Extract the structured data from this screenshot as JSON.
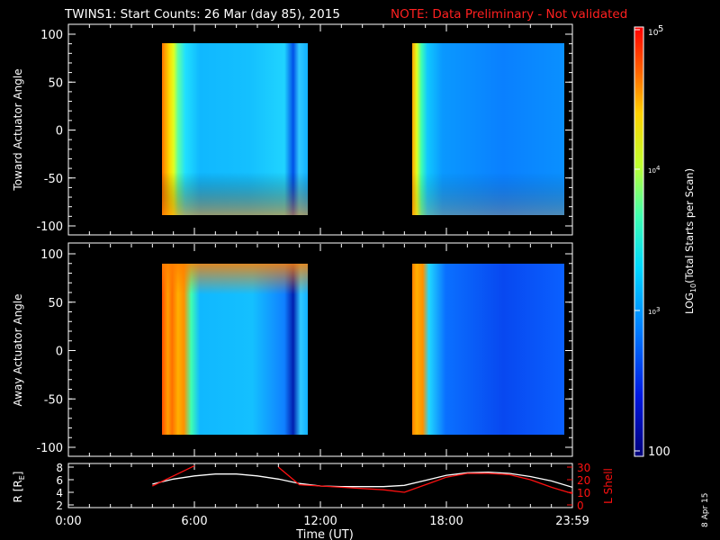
{
  "header": {
    "title": "TWINS1: Start Counts: 26 Mar (day  85), 2015",
    "note": "NOTE: Data Preliminary - Not validated"
  },
  "side_label": "8 Apr 15",
  "colors": {
    "background": "#000000",
    "axes": "#ffffff",
    "note": "#ff2020",
    "lshell": "#ff1010",
    "radius": "#ffffff"
  },
  "chart_data": [
    {
      "type": "heatmap",
      "panel": "toward",
      "ylabel": "Toward Actuator Angle",
      "ylim": [
        -100,
        100
      ],
      "yticks": [
        100,
        50,
        0,
        -50,
        -100
      ],
      "xlim_hours": [
        0,
        24
      ],
      "data_blocks": [
        {
          "start_hour": 4.0,
          "end_hour": 11.0,
          "angle_range": [
            -90,
            90
          ]
        },
        {
          "start_hour": 16.0,
          "end_hour": 23.5,
          "angle_range": [
            -90,
            90
          ]
        }
      ]
    },
    {
      "type": "heatmap",
      "panel": "away",
      "ylabel": "Away Actuator Angle",
      "ylim": [
        -100,
        100
      ],
      "yticks": [
        100,
        50,
        0,
        -50,
        -100
      ],
      "xlim_hours": [
        0,
        24
      ],
      "data_blocks": [
        {
          "start_hour": 4.0,
          "end_hour": 11.0,
          "angle_range": [
            -90,
            90
          ]
        },
        {
          "start_hour": 16.0,
          "end_hour": 23.5,
          "angle_range": [
            -90,
            90
          ]
        }
      ]
    },
    {
      "type": "line",
      "panel": "orbit",
      "x_hours": [
        4.0,
        5.0,
        6.0,
        7.0,
        8.0,
        9.0,
        10.0,
        11.0,
        12.0,
        13.0,
        14.0,
        15.0,
        16.0,
        17.0,
        18.0,
        19.0,
        20.0,
        21.0,
        22.0,
        23.0,
        24.0
      ],
      "series": [
        {
          "name": "R [RE]",
          "axis": "left",
          "ylim": [
            2,
            8
          ],
          "yticks": [
            8,
            6,
            4,
            2
          ],
          "values": [
            5.3,
            6.1,
            6.6,
            6.9,
            6.9,
            6.6,
            6.1,
            5.4,
            5.0,
            4.9,
            4.9,
            4.9,
            5.1,
            5.9,
            6.7,
            7.1,
            7.2,
            7.0,
            6.5,
            5.8,
            4.8
          ]
        },
        {
          "name": "L Shell",
          "axis": "right",
          "ylim": [
            0,
            30
          ],
          "yticks": [
            30,
            20,
            10,
            0
          ],
          "values": [
            15,
            23,
            31,
            null,
            null,
            null,
            30,
            16,
            15,
            14,
            13,
            12,
            10,
            16,
            22,
            25,
            25,
            24,
            20,
            14,
            9
          ]
        }
      ]
    }
  ],
  "x_axis": {
    "label": "Time (UT)",
    "ticks": [
      {
        "hour": 0,
        "label": "0:00"
      },
      {
        "hour": 6,
        "label": "6:00"
      },
      {
        "hour": 12,
        "label": "12:00"
      },
      {
        "hour": 18,
        "label": "18:00"
      },
      {
        "hour": 24,
        "label": "23:59"
      }
    ]
  },
  "orbit_labels": {
    "left": "R [R",
    "left_sub": "E",
    "left_close": "]",
    "right": "L Shell"
  },
  "colorbar": {
    "label_prefix": "LOG",
    "label_sub": "10",
    "label_suffix": "(Total Starts per Scan)",
    "ticks": [
      {
        "value_log": 5,
        "base": "10",
        "exp": "5"
      },
      {
        "value_log": 4,
        "base": "10",
        "exp": "4"
      },
      {
        "value_log": 3,
        "base": "10",
        "exp": "3"
      },
      {
        "value_log": 2,
        "label": "100"
      }
    ],
    "range_log": [
      2,
      5
    ]
  }
}
